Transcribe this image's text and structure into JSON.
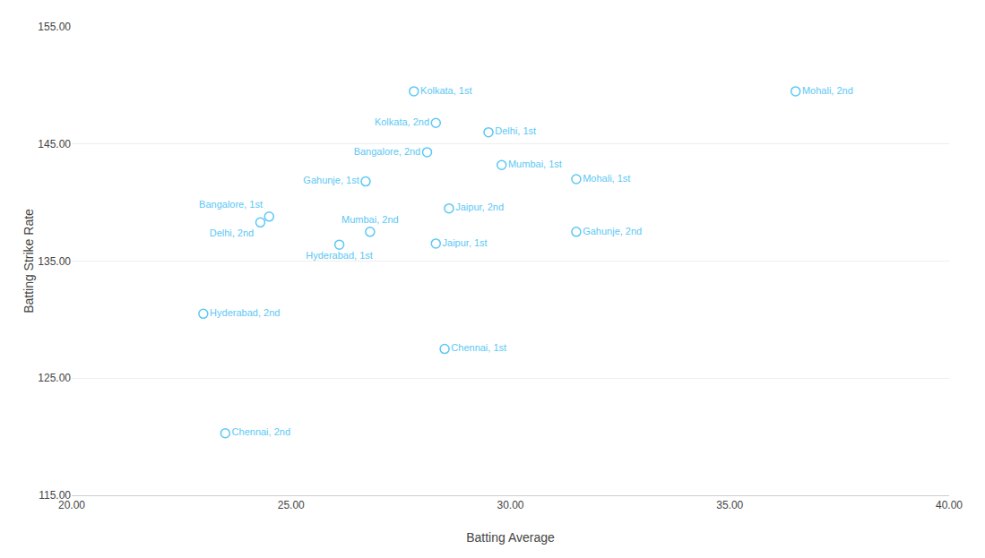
{
  "chart_data": {
    "type": "scatter",
    "xlabel": "Batting Average",
    "ylabel": "Batting Strike Rate",
    "labels": [
      "Kolkata, 1st",
      "Kolkata, 2nd",
      "Delhi, 1st",
      "Bangalore, 2nd",
      "Gahunje, 1st",
      "Mumbai, 1st",
      "Mohali, 1st",
      "Mohali, 2nd",
      "Bangalore, 1st",
      "Mumbai, 2nd",
      "Jaipur, 2nd",
      "Delhi, 2nd",
      "Hyderabad, 1st",
      "Jaipur, 1st",
      "Gahunje, 2nd",
      "Hyderabad, 2nd",
      "Chennai, 1st",
      "Chennai, 2nd"
    ],
    "x": [
      27.8,
      28.3,
      29.5,
      28.1,
      26.7,
      29.8,
      31.5,
      36.5,
      24.5,
      26.8,
      28.6,
      24.3,
      26.1,
      28.3,
      31.5,
      23.0,
      28.5,
      23.5
    ],
    "values": [
      149.5,
      146.8,
      146.0,
      144.3,
      141.8,
      143.2,
      142.0,
      149.5,
      138.8,
      137.5,
      139.5,
      138.3,
      136.4,
      136.5,
      137.5,
      130.5,
      127.5,
      120.3
    ],
    "color": "#5BC8F5",
    "marker": "circle-open",
    "xlim": [
      20.0,
      40.0
    ],
    "ylim": [
      115.0,
      155.0
    ],
    "xticks": [
      {
        "value": 20.0,
        "label": "20.00"
      },
      {
        "value": 25.0,
        "label": "25.00"
      },
      {
        "value": 30.0,
        "label": "30.00"
      },
      {
        "value": 35.0,
        "label": "35.00"
      },
      {
        "value": 40.0,
        "label": "40.00"
      }
    ],
    "yticks": [
      {
        "value": 115.0,
        "label": "115.00"
      },
      {
        "value": 125.0,
        "label": "125.00"
      },
      {
        "value": 135.0,
        "label": "135.00"
      },
      {
        "value": 145.0,
        "label": "145.00"
      },
      {
        "value": 155.0,
        "label": "155.00"
      }
    ],
    "grid": "y"
  }
}
